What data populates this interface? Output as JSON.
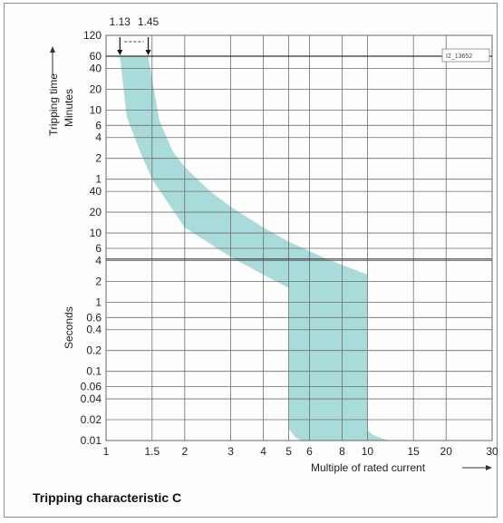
{
  "caption": "Tripping characteristic C",
  "chart_data": {
    "type": "area",
    "title": "",
    "xlabel": "Multiple of rated current",
    "ylabel_top": "Tripping time",
    "ylabel_minutes": "Minutes",
    "ylabel_seconds": "Seconds",
    "drawing_id": "I2_13652",
    "x_scale": "log",
    "y_scale": "log",
    "xlim": [
      1,
      30
    ],
    "ylim_seconds": [
      0.01,
      7200
    ],
    "grid": true,
    "x_ticks": [
      1,
      1.5,
      2,
      3,
      4,
      5,
      6,
      8,
      10,
      15,
      20,
      30
    ],
    "x_tick_labels": [
      "1",
      "1.5",
      "2",
      "3",
      "4",
      "5",
      "6",
      "8",
      "10",
      "15",
      "20",
      "30"
    ],
    "y_ticks_minutes": [
      {
        "label": "120",
        "seconds": 7200
      },
      {
        "label": "60",
        "seconds": 3600
      },
      {
        "label": "40",
        "seconds": 2400
      },
      {
        "label": "20",
        "seconds": 1200
      },
      {
        "label": "10",
        "seconds": 600
      },
      {
        "label": "6",
        "seconds": 360
      },
      {
        "label": "4",
        "seconds": 240
      },
      {
        "label": "2",
        "seconds": 120
      },
      {
        "label": "1",
        "seconds": 60
      }
    ],
    "y_ticks_seconds": [
      {
        "label": "40",
        "seconds": 40
      },
      {
        "label": "20",
        "seconds": 20
      },
      {
        "label": "10",
        "seconds": 10
      },
      {
        "label": "6",
        "seconds": 6
      },
      {
        "label": "4",
        "seconds": 4
      },
      {
        "label": "2",
        "seconds": 2
      },
      {
        "label": "1",
        "seconds": 1
      },
      {
        "label": "0.6",
        "seconds": 0.6
      },
      {
        "label": "0.4",
        "seconds": 0.4
      },
      {
        "label": "0.2",
        "seconds": 0.2
      },
      {
        "label": "0.1",
        "seconds": 0.1
      },
      {
        "label": "0.06",
        "seconds": 0.06
      },
      {
        "label": "0.04",
        "seconds": 0.04
      },
      {
        "label": "0.02",
        "seconds": 0.02
      },
      {
        "label": "0.01",
        "seconds": 0.01
      }
    ],
    "markers": [
      {
        "label": "1.13",
        "x": 1.13
      },
      {
        "label": "1.45",
        "x": 1.45
      }
    ],
    "band_upper": [
      {
        "x": 1.45,
        "seconds": 3600
      },
      {
        "x": 1.6,
        "seconds": 420
      },
      {
        "x": 1.8,
        "seconds": 150
      },
      {
        "x": 2,
        "seconds": 90
      },
      {
        "x": 2.5,
        "seconds": 40
      },
      {
        "x": 3,
        "seconds": 24
      },
      {
        "x": 4,
        "seconds": 12
      },
      {
        "x": 5,
        "seconds": 7.5
      },
      {
        "x": 7,
        "seconds": 4.2
      },
      {
        "x": 10,
        "seconds": 2.5
      },
      {
        "x": 10,
        "seconds": 0.014
      },
      {
        "x": 10.5,
        "seconds": 0.012
      },
      {
        "x": 12,
        "seconds": 0.01
      }
    ],
    "band_lower": [
      {
        "x": 1.13,
        "seconds": 3600
      },
      {
        "x": 1.2,
        "seconds": 480
      },
      {
        "x": 1.35,
        "seconds": 150
      },
      {
        "x": 1.5,
        "seconds": 60
      },
      {
        "x": 2,
        "seconds": 12
      },
      {
        "x": 3,
        "seconds": 4.5
      },
      {
        "x": 4,
        "seconds": 2.5
      },
      {
        "x": 5,
        "seconds": 1.6
      },
      {
        "x": 5,
        "seconds": 0.015
      },
      {
        "x": 5.3,
        "seconds": 0.011
      },
      {
        "x": 5.6,
        "seconds": 0.01
      }
    ]
  },
  "colors": {
    "band": "#a9dbdb",
    "grid": "#6e6e6e",
    "text": "#222222"
  }
}
